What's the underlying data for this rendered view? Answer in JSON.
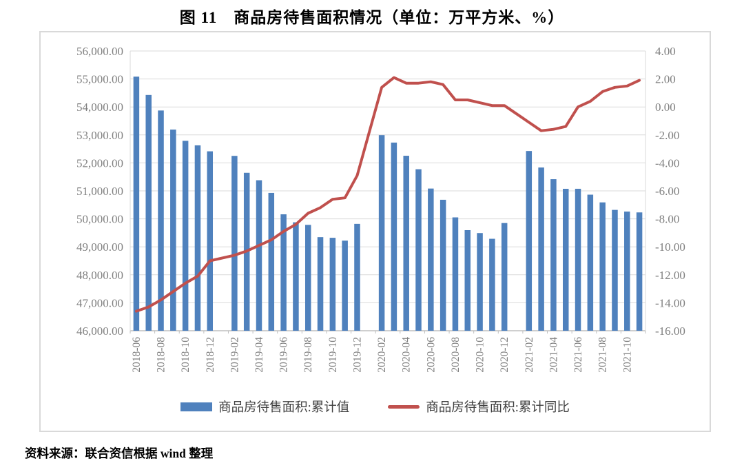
{
  "title": "图 11　商品房待售面积情况（单位：万平方米、%）",
  "source_note": "资料来源：联合资信根据 wind 整理",
  "legend": [
    {
      "label": "商品房待售面积:累计值",
      "type": "bar",
      "color": "#4F81BD"
    },
    {
      "label": "商品房待售面积:累计同比",
      "type": "line",
      "color": "#C0504D"
    }
  ],
  "colors": {
    "bar": "#4F81BD",
    "line": "#C0504D",
    "gridline": "#D9D9D9",
    "axis_line": "#BFBFBF",
    "axis_text": "#7F7F7F",
    "frame_border": "#D9D9D9"
  },
  "chart_data": {
    "type": "bar",
    "subtype": "combo-bar-line-dual-axis",
    "title": "图 11　商品房待售面积情况（单位：万平方米、%）",
    "xlabel": "",
    "ylabel_left": "万平方米",
    "ylabel_right": "%",
    "grid": true,
    "legend_position": "bottom",
    "categories": [
      "2018-06",
      "2018-07",
      "2018-08",
      "2018-09",
      "2018-10",
      "2018-11",
      "2018-12",
      "2019-01",
      "2019-02",
      "2019-03",
      "2019-04",
      "2019-05",
      "2019-06",
      "2019-07",
      "2019-08",
      "2019-09",
      "2019-10",
      "2019-11",
      "2019-12",
      "2020-01",
      "2020-02",
      "2020-03",
      "2020-04",
      "2020-05",
      "2020-06",
      "2020-07",
      "2020-08",
      "2020-09",
      "2020-10",
      "2020-11",
      "2020-12",
      "2021-01",
      "2021-02",
      "2021-03",
      "2021-04",
      "2021-05",
      "2021-06",
      "2021-07",
      "2021-08",
      "2021-09",
      "2021-10",
      "2021-11"
    ],
    "series": [
      {
        "name": "商品房待售面积:累计值",
        "type": "bar",
        "axis": "left",
        "color": "#4F81BD",
        "values": [
          55083,
          54428,
          53873,
          53191,
          52789,
          52627,
          52414,
          null,
          52251,
          51646,
          51380,
          50928,
          50162,
          49876,
          49784,
          49346,
          49323,
          49221,
          49821,
          null,
          52991,
          52726,
          52255,
          51773,
          51083,
          50682,
          50052,
          49596,
          49492,
          49287,
          49850,
          null,
          52425,
          51835,
          51417,
          51074,
          51075,
          50864,
          50588,
          50320,
          50260,
          50230
        ]
      },
      {
        "name": "商品房待售面积:累计同比",
        "type": "line",
        "axis": "right",
        "color": "#C0504D",
        "values": [
          -14.6,
          -14.3,
          -13.8,
          -13.2,
          -12.6,
          -12.1,
          -11.0,
          null,
          -10.6,
          -10.3,
          -9.9,
          -9.5,
          -8.9,
          -8.4,
          -7.6,
          -7.2,
          -6.6,
          -6.5,
          -4.9,
          null,
          1.4,
          2.1,
          1.7,
          1.7,
          1.8,
          1.6,
          0.5,
          0.5,
          0.3,
          0.1,
          0.1,
          null,
          -1.1,
          -1.7,
          -1.6,
          -1.4,
          0.0,
          0.4,
          1.1,
          1.4,
          1.5,
          1.9
        ]
      }
    ],
    "x_tick_labels": [
      "2018-06",
      "2018-08",
      "2018-10",
      "2018-12",
      "2019-02",
      "2019-04",
      "2019-06",
      "2019-08",
      "2019-10",
      "2019-12",
      "2020-02",
      "2020-04",
      "2020-06",
      "2020-08",
      "2020-10",
      "2020-12",
      "2021-02",
      "2021-04",
      "2021-06",
      "2021-08",
      "2021-10"
    ],
    "left_axis": {
      "min": 46000,
      "max": 56000,
      "step": 1000,
      "tick_labels": [
        "56,000.00",
        "55,000.00",
        "54,000.00",
        "53,000.00",
        "52,000.00",
        "51,000.00",
        "50,000.00",
        "49,000.00",
        "48,000.00",
        "47,000.00",
        "46,000.00"
      ]
    },
    "right_axis": {
      "min": -16,
      "max": 4,
      "step": 2,
      "tick_labels": [
        "4.00",
        "2.00",
        "0.00",
        "-2.00",
        "-4.00",
        "-6.00",
        "-8.00",
        "-10.00",
        "-12.00",
        "-14.00",
        "-16.00"
      ]
    }
  }
}
